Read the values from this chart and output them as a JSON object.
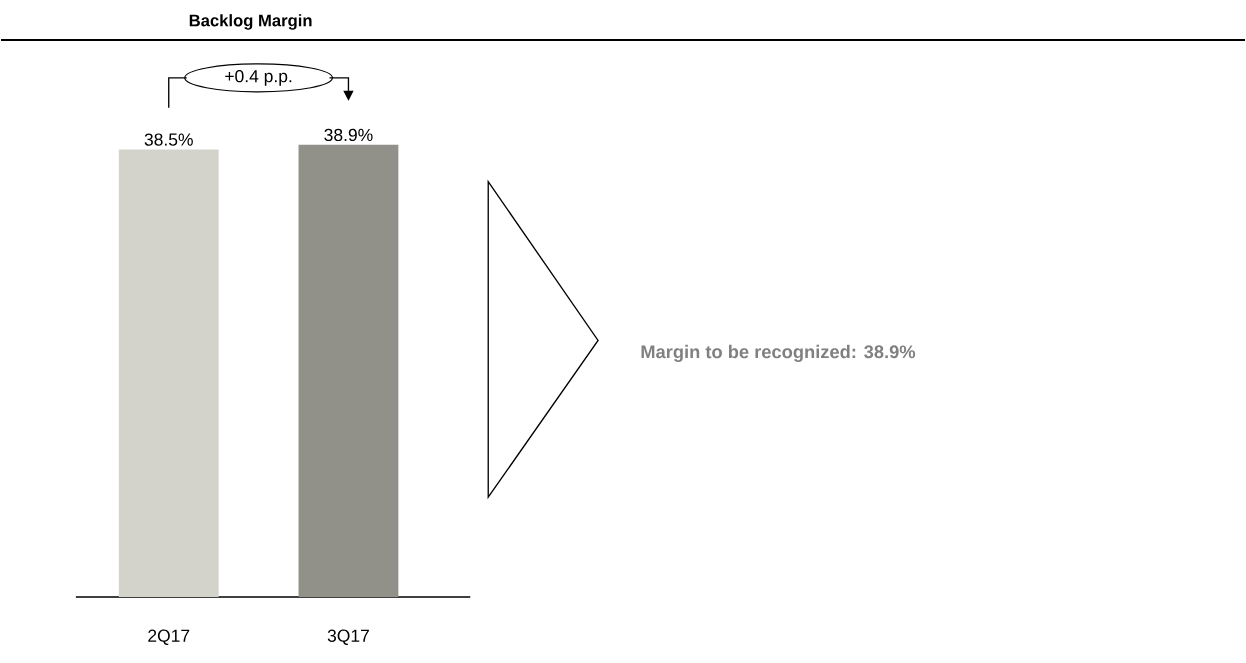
{
  "chart_data": {
    "type": "bar",
    "title": "Backlog Margin",
    "categories": [
      "2Q17",
      "3Q17"
    ],
    "values": [
      38.5,
      38.9
    ],
    "value_labels": [
      "38.5%",
      "38.9%"
    ],
    "colors": [
      "#d3d3cb",
      "#929189"
    ],
    "tick_labels": "x",
    "annotations": [
      "+0.4 p.p.",
      "Margin to be recognized: 38.9%"
    ]
  }
}
